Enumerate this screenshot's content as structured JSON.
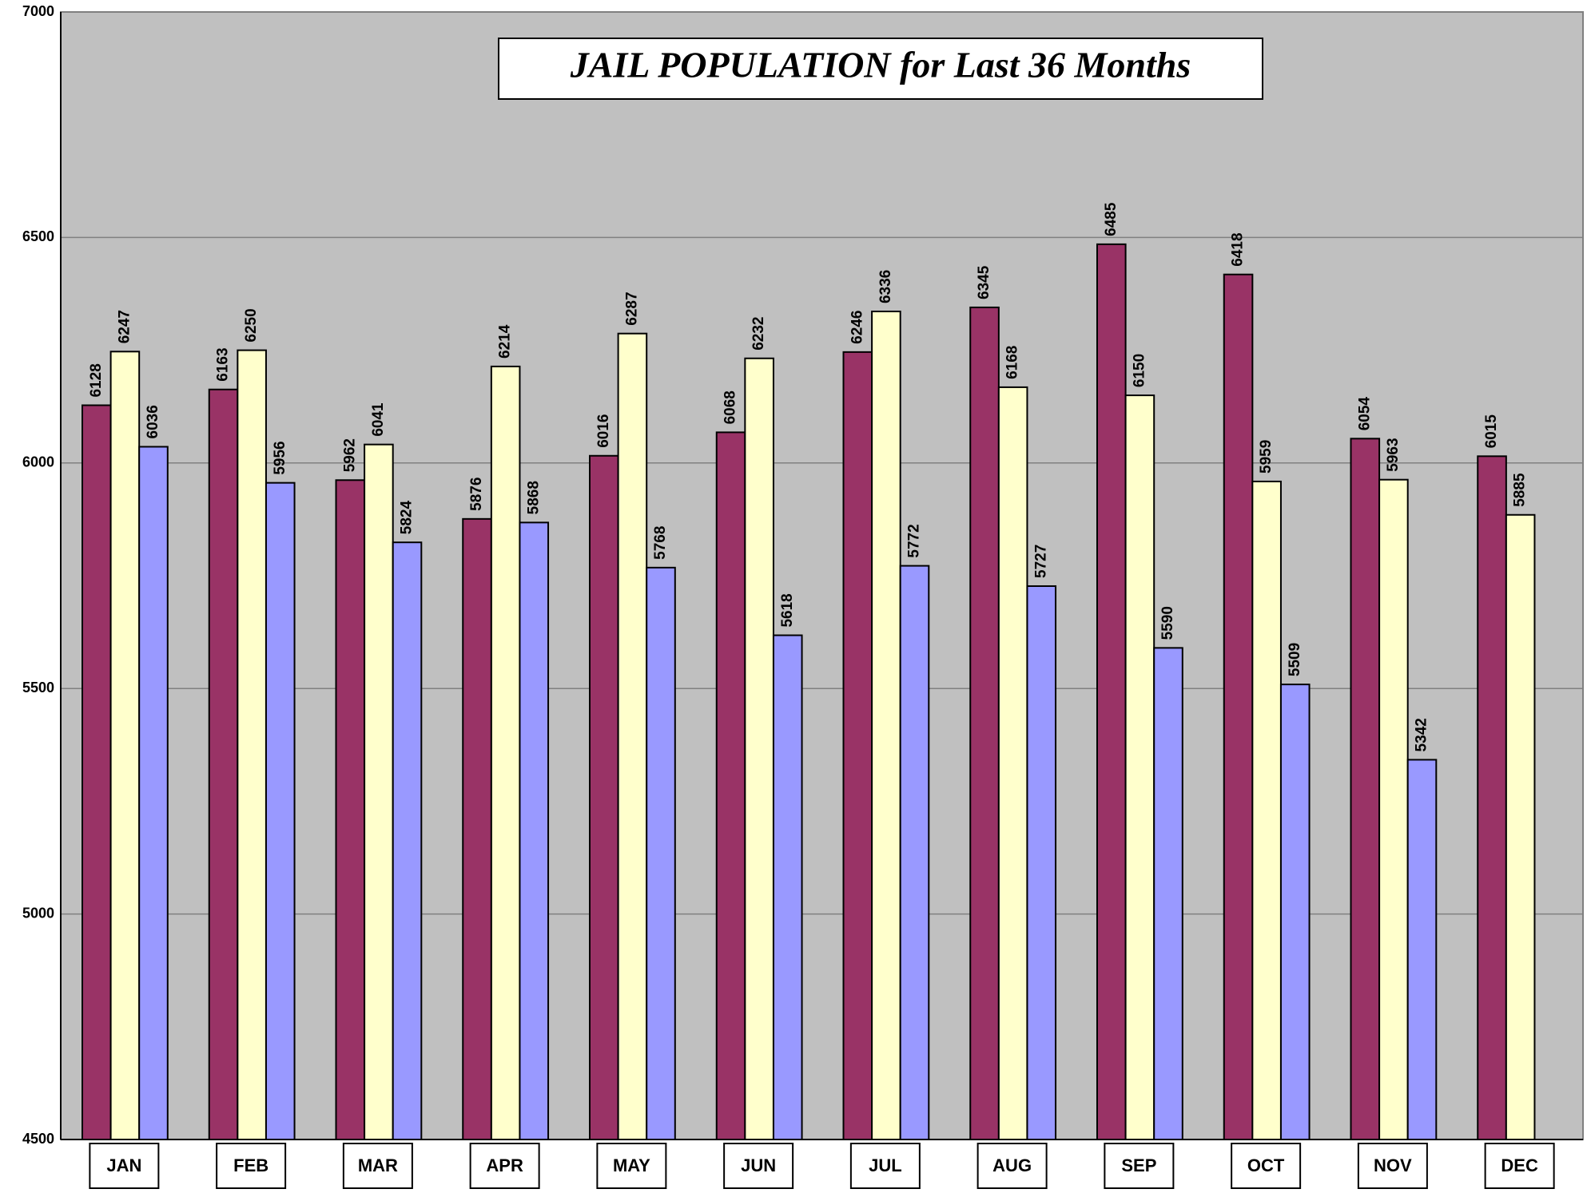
{
  "chart_data": {
    "type": "bar",
    "title": "JAIL POPULATION for Last 36 Months",
    "categories": [
      "JAN",
      "FEB",
      "MAR",
      "APR",
      "MAY",
      "JUN",
      "JUL",
      "AUG",
      "SEP",
      "OCT",
      "NOV",
      "DEC"
    ],
    "series": [
      {
        "color": "#993366",
        "values": [
          6128,
          6163,
          5962,
          5876,
          6016,
          6068,
          6246,
          6345,
          6485,
          6418,
          6054,
          6015
        ]
      },
      {
        "color": "#FFFFCC",
        "values": [
          6247,
          6250,
          6041,
          6214,
          6287,
          6232,
          6336,
          6168,
          6150,
          5959,
          5963,
          5885
        ]
      },
      {
        "color": "#9999FF",
        "values": [
          6036,
          5956,
          5824,
          5868,
          5768,
          5618,
          5772,
          5727,
          5590,
          5509,
          5342,
          null
        ]
      }
    ],
    "ylim": [
      4500,
      7000
    ],
    "yticks": [
      4500,
      5000,
      5500,
      6000,
      6500,
      7000
    ],
    "grid": true
  }
}
